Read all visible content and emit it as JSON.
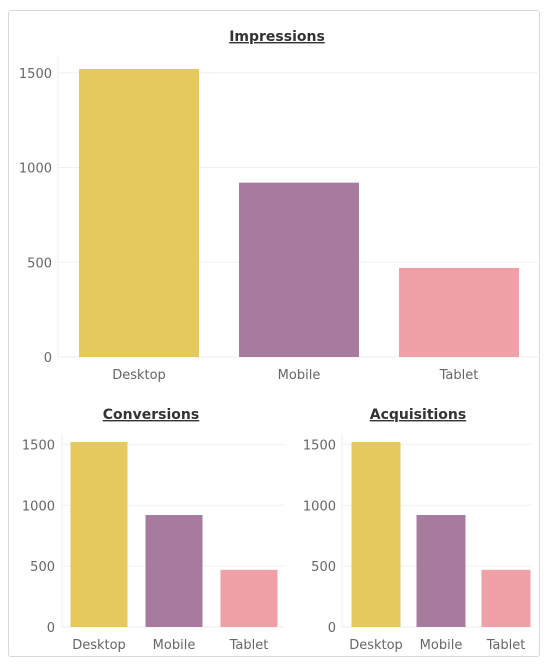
{
  "chart_data": [
    {
      "type": "bar",
      "title": "Impressions",
      "categories": [
        "Desktop",
        "Mobile",
        "Tablet"
      ],
      "values": [
        1520,
        920,
        470
      ],
      "colors": [
        "#e5c95f",
        "#a77b9d",
        "#f0a1a7"
      ],
      "yticks": [
        0,
        500,
        1000,
        1500
      ],
      "ylim": [
        0,
        1520
      ],
      "grid": true
    },
    {
      "type": "bar",
      "title": "Conversions",
      "categories": [
        "Desktop",
        "Mobile",
        "Tablet"
      ],
      "values": [
        1520,
        920,
        470
      ],
      "colors": [
        "#e5c95f",
        "#a77b9d",
        "#f0a1a7"
      ],
      "yticks": [
        0,
        500,
        1000,
        1500
      ],
      "ylim": [
        0,
        1520
      ],
      "grid": true
    },
    {
      "type": "bar",
      "title": "Acquisitions",
      "categories": [
        "Desktop",
        "Mobile",
        "Tablet"
      ],
      "values": [
        1520,
        920,
        470
      ],
      "colors": [
        "#e5c95f",
        "#a77b9d",
        "#f0a1a7"
      ],
      "yticks": [
        0,
        500,
        1000,
        1500
      ],
      "ylim": [
        0,
        1520
      ],
      "grid": true
    }
  ]
}
